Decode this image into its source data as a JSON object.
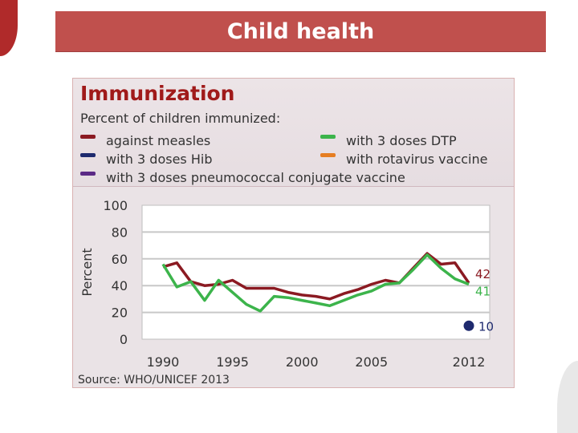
{
  "slide": {
    "title": "Child health"
  },
  "chart_data": {
    "type": "line",
    "title": "Immunization",
    "subtitle": "Percent of children immunized:",
    "ylabel": "Percent",
    "xlabel": "",
    "source": "Source: WHO/UNICEF 2013",
    "xlim": [
      1988.5,
      2013.5
    ],
    "ylim": [
      0,
      100
    ],
    "x_ticks": [
      1990,
      1995,
      2000,
      2005,
      2012
    ],
    "y_ticks": [
      0,
      20,
      40,
      60,
      80,
      100
    ],
    "grid": "horizontal",
    "legend_position": "top",
    "legend": [
      {
        "label": "against measles",
        "color": "#8b1a22"
      },
      {
        "label": "with 3 doses DTP",
        "color": "#3cb44b"
      },
      {
        "label": "with 3 doses Hib",
        "color": "#1e2a6e"
      },
      {
        "label": "with rotavirus vaccine",
        "color": "#e67e22"
      },
      {
        "label": "with 3 doses pneumococcal conjugate vaccine",
        "color": "#5b2a86"
      }
    ],
    "series": [
      {
        "name": "against measles",
        "color": "#8b1a22",
        "x": [
          1990,
          1991,
          1992,
          1993,
          1994,
          1995,
          1996,
          1997,
          1998,
          1999,
          2000,
          2001,
          2002,
          2003,
          2004,
          2005,
          2006,
          2007,
          2008,
          2009,
          2010,
          2011,
          2012
        ],
        "y": [
          54,
          57,
          43,
          40,
          41,
          44,
          38,
          38,
          38,
          35,
          33,
          32,
          30,
          34,
          37,
          41,
          44,
          42,
          53,
          64,
          56,
          57,
          42
        ],
        "end_label": "42"
      },
      {
        "name": "with 3 doses DTP",
        "color": "#3cb44b",
        "x": [
          1990,
          1991,
          1992,
          1993,
          1994,
          1995,
          1996,
          1997,
          1998,
          1999,
          2000,
          2001,
          2002,
          2003,
          2004,
          2005,
          2006,
          2007,
          2008,
          2009,
          2010,
          2011,
          2012
        ],
        "y": [
          56,
          39,
          43,
          29,
          44,
          35,
          26,
          21,
          32,
          31,
          29,
          27,
          25,
          29,
          33,
          36,
          41,
          42,
          52,
          63,
          53,
          45,
          41
        ],
        "end_label": "41"
      },
      {
        "name": "with 3 doses Hib",
        "color": "#1e2a6e",
        "x": [
          2012
        ],
        "y": [
          10
        ],
        "end_label": "10"
      }
    ]
  }
}
